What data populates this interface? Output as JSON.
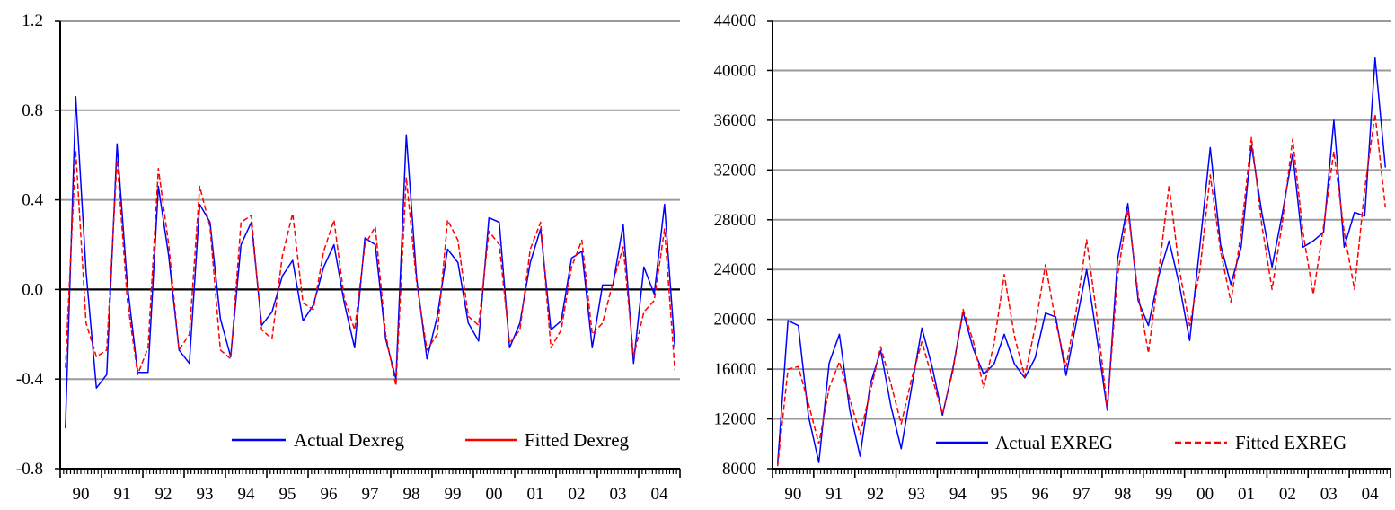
{
  "chart_data": [
    {
      "type": "line",
      "ylim": [
        -0.8,
        1.2
      ],
      "yticks": [
        "-0.8",
        "-0.4",
        "0.0",
        "0.4",
        "0.8",
        "1.2"
      ],
      "xtick_labels": [
        "90",
        "91",
        "92",
        "93",
        "94",
        "95",
        "96",
        "97",
        "98",
        "99",
        "00",
        "01",
        "02",
        "03",
        "04"
      ],
      "x_start_year": 1990,
      "grid": true,
      "zero_line": true,
      "legend_position": "bottom-right",
      "series": [
        {
          "name": "Actual Dexreg",
          "color": "#0000ff",
          "style": "solid",
          "values": [
            -0.62,
            0.86,
            0.08,
            -0.44,
            -0.38,
            0.65,
            0.02,
            -0.37,
            -0.37,
            0.46,
            0.15,
            -0.27,
            -0.33,
            0.38,
            0.3,
            -0.13,
            -0.3,
            0.2,
            0.3,
            -0.16,
            -0.1,
            0.06,
            0.13,
            -0.14,
            -0.07,
            0.1,
            0.2,
            -0.06,
            -0.26,
            0.23,
            0.2,
            -0.22,
            -0.4,
            0.69,
            0.05,
            -0.31,
            -0.12,
            0.18,
            0.12,
            -0.15,
            -0.23,
            0.32,
            0.3,
            -0.26,
            -0.15,
            0.12,
            0.27,
            -0.18,
            -0.14,
            0.14,
            0.17,
            -0.26,
            0.02,
            0.02,
            0.29,
            -0.33,
            0.1,
            -0.02,
            0.38,
            -0.26
          ]
        },
        {
          "name": "Fitted Dexreg",
          "color": "#ff0000",
          "style": "dashed",
          "values": [
            -0.35,
            0.62,
            -0.15,
            -0.3,
            -0.27,
            0.58,
            -0.05,
            -0.38,
            -0.26,
            0.54,
            0.2,
            -0.27,
            -0.2,
            0.46,
            0.28,
            -0.27,
            -0.31,
            0.3,
            0.33,
            -0.18,
            -0.22,
            0.15,
            0.34,
            -0.06,
            -0.09,
            0.17,
            0.31,
            -0.04,
            -0.18,
            0.2,
            0.28,
            -0.2,
            -0.43,
            0.5,
            0.03,
            -0.27,
            -0.2,
            0.31,
            0.22,
            -0.12,
            -0.16,
            0.26,
            0.2,
            -0.24,
            -0.18,
            0.18,
            0.3,
            -0.26,
            -0.18,
            0.1,
            0.22,
            -0.2,
            -0.15,
            0.03,
            0.19,
            -0.3,
            -0.1,
            -0.05,
            0.27,
            -0.36
          ]
        }
      ]
    },
    {
      "type": "line",
      "ylim": [
        8000,
        44000
      ],
      "yticks": [
        "8000",
        "12000",
        "16000",
        "20000",
        "24000",
        "28000",
        "32000",
        "36000",
        "40000",
        "44000"
      ],
      "xtick_labels": [
        "90",
        "91",
        "92",
        "93",
        "94",
        "95",
        "96",
        "97",
        "98",
        "99",
        "00",
        "01",
        "02",
        "03",
        "04"
      ],
      "x_start_year": 1990,
      "grid": true,
      "zero_line": false,
      "legend_position": "bottom-right",
      "series": [
        {
          "name": "Actual EXREG",
          "color": "#0000ff",
          "style": "solid",
          "values": [
            8400,
            19900,
            19500,
            12200,
            8500,
            16500,
            18800,
            12700,
            9000,
            14800,
            17500,
            13000,
            9600,
            14500,
            19300,
            16200,
            12300,
            16000,
            20600,
            17600,
            15600,
            16400,
            18800,
            16400,
            15300,
            16900,
            20500,
            20200,
            15500,
            19800,
            24000,
            18500,
            12700,
            24800,
            29300,
            21500,
            19500,
            23500,
            26300,
            22800,
            18300,
            26000,
            33800,
            26000,
            22800,
            25800,
            34000,
            28600,
            24200,
            28500,
            33300,
            25800,
            26300,
            27000,
            36000,
            25800,
            28600,
            28300,
            41000,
            32200
          ]
        },
        {
          "name": "Fitted EXREG",
          "color": "#ff0000",
          "style": "dashed",
          "values": [
            8200,
            16000,
            16200,
            13200,
            10000,
            14500,
            16600,
            13600,
            10800,
            14200,
            17800,
            14800,
            11600,
            15200,
            18200,
            15300,
            12400,
            15800,
            20800,
            18200,
            14500,
            18000,
            23600,
            18600,
            15400,
            19400,
            24400,
            19800,
            16200,
            20800,
            26400,
            20200,
            12800,
            23500,
            28800,
            22000,
            17300,
            23800,
            30800,
            24000,
            19500,
            24000,
            31600,
            25500,
            21400,
            27000,
            34600,
            27600,
            22400,
            27800,
            34500,
            27000,
            22000,
            27500,
            33500,
            27000,
            22400,
            30500,
            36500,
            29000
          ]
        }
      ]
    }
  ]
}
